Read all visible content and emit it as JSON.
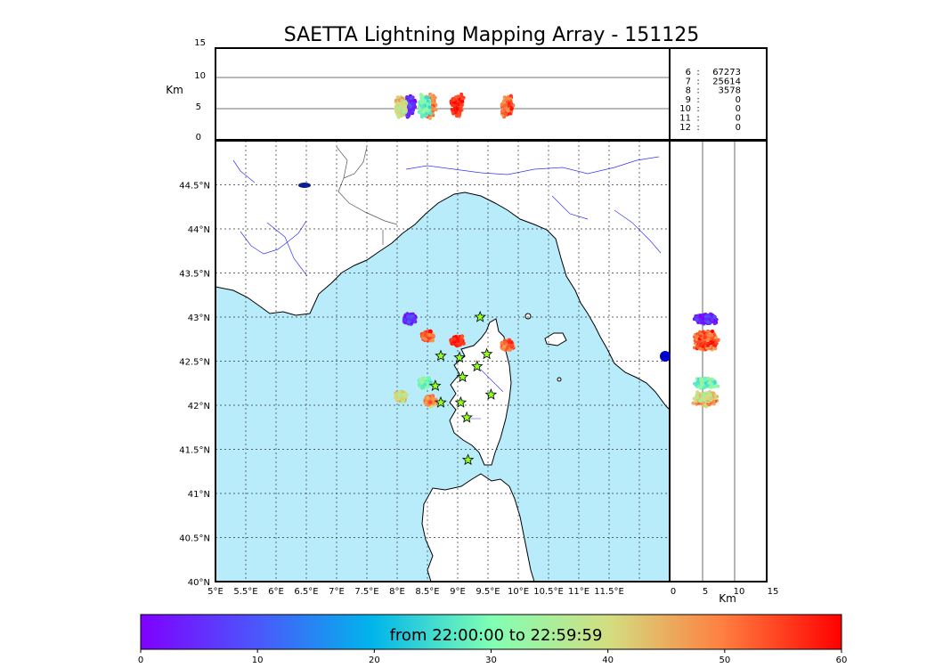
{
  "chart_data": {
    "type": "scatter",
    "title": "SAETTA Lightning Mapping Array - 151125",
    "top_panel": {
      "ylabel": "Km",
      "ylim": [
        0,
        15
      ],
      "yticks": [
        "0",
        "5",
        "10",
        "15"
      ],
      "grid_lines_km": [
        5,
        10
      ]
    },
    "map": {
      "xlim_lon": [
        5,
        12.5
      ],
      "ylim_lat": [
        40,
        45
      ],
      "xticks": [
        "5°E",
        "5.5°E",
        "6°E",
        "6.5°E",
        "7°E",
        "7.5°E",
        "8°E",
        "8.5°E",
        "9°E",
        "9.5°E",
        "10°E",
        "10.5°E",
        "11°E",
        "11.5°E"
      ],
      "yticks": [
        "40°N",
        "40.5°N",
        "41°N",
        "41.5°N",
        "42°N",
        "42.5°N",
        "43°N",
        "43.5°N",
        "44°N",
        "44.5°N"
      ],
      "grid": true,
      "sea_color": "#b8ecfb",
      "land_color": "#ffffff",
      "clusters": [
        {
          "name": "ne-cap-corse",
          "lon": 9.82,
          "lat": 42.68,
          "time_min": 52
        },
        {
          "name": "north-east",
          "lon": 9.0,
          "lat": 42.73,
          "time_min": 56
        },
        {
          "name": "balagne",
          "lon": 8.5,
          "lat": 42.78,
          "time_min": 52
        },
        {
          "name": "west-purple",
          "lon": 8.2,
          "lat": 42.98,
          "time_min": 4
        },
        {
          "name": "ajaccio-west",
          "lon": 8.55,
          "lat": 42.05,
          "time_min": 50
        },
        {
          "name": "ajaccio-north",
          "lon": 8.45,
          "lat": 42.25,
          "time_min": 30
        },
        {
          "name": "sw-yellow",
          "lon": 8.07,
          "lat": 42.1,
          "time_min": 40
        }
      ],
      "stations": [
        {
          "lon": 9.37,
          "lat": 43.0
        },
        {
          "lon": 8.72,
          "lat": 42.56
        },
        {
          "lon": 9.03,
          "lat": 42.54
        },
        {
          "lon": 9.48,
          "lat": 42.58
        },
        {
          "lon": 9.32,
          "lat": 42.44
        },
        {
          "lon": 9.08,
          "lat": 42.32
        },
        {
          "lon": 8.63,
          "lat": 42.22
        },
        {
          "lon": 9.55,
          "lat": 42.12
        },
        {
          "lon": 8.72,
          "lat": 42.03
        },
        {
          "lon": 9.05,
          "lat": 42.03
        },
        {
          "lon": 9.15,
          "lat": 41.86
        },
        {
          "lon": 9.17,
          "lat": 41.38
        }
      ]
    },
    "right_panel": {
      "xlabel": "Km",
      "xlim": [
        0,
        15
      ],
      "xticks": [
        "0",
        "5",
        "10",
        "15"
      ],
      "grid_lines_km": [
        5,
        10
      ]
    },
    "station_counts": [
      {
        "stations": "6",
        "sep": ":",
        "count": "67273",
        "highlight": false
      },
      {
        "stations": "7",
        "sep": ":",
        "count": "25614",
        "highlight": true
      },
      {
        "stations": "8",
        "sep": ":",
        "count": "3578",
        "highlight": false
      },
      {
        "stations": "9",
        "sep": ":",
        "count": "0",
        "highlight": false
      },
      {
        "stations": "10",
        "sep": ":",
        "count": "0",
        "highlight": false
      },
      {
        "stations": "11",
        "sep": ":",
        "count": "0",
        "highlight": false
      },
      {
        "stations": "12",
        "sep": ":",
        "count": "0",
        "highlight": false
      }
    ],
    "colorbar": {
      "label": "from 22:00:00 to 22:59:59",
      "range": [
        0,
        60
      ],
      "ticks": [
        "0",
        "10",
        "20",
        "30",
        "40",
        "50",
        "60"
      ],
      "colormap": "rainbow"
    }
  }
}
